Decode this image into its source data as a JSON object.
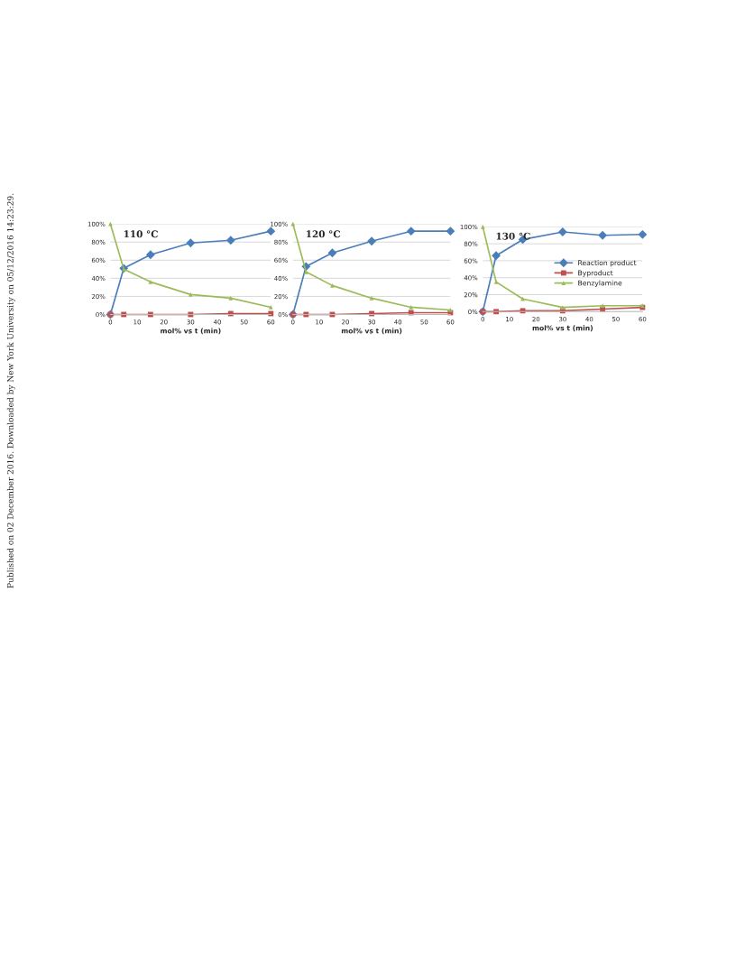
{
  "chart_data": [
    {
      "type": "line",
      "title": "110 °C",
      "xlabel": "mol% vs t (min)",
      "x": [
        0,
        5,
        15,
        30,
        45,
        60
      ],
      "xlim": [
        0,
        60
      ],
      "xticks": [
        0,
        10,
        20,
        30,
        40,
        50,
        60
      ],
      "ylim": [
        0,
        100
      ],
      "yticks": [
        {
          "value": 0,
          "label": "0%"
        },
        {
          "value": 20,
          "label": "20%"
        },
        {
          "value": 40,
          "label": "40%"
        },
        {
          "value": 60,
          "label": "60%"
        },
        {
          "value": 80,
          "label": "80%"
        },
        {
          "value": 100,
          "label": "100%"
        }
      ],
      "grid": "y",
      "legend": false,
      "annotations": [
        "Published on 02 December 2016. Downloaded by New York University on 05/12/2016 14:23:29."
      ],
      "series": [
        {
          "color": "#4a7ebb",
          "marker": "diamond",
          "values": [
            0,
            51,
            66,
            79,
            82,
            92
          ]
        },
        {
          "color": "#c0504d",
          "marker": "square",
          "values": [
            0,
            0,
            0,
            0,
            1,
            1
          ]
        },
        {
          "color": "#9bbb59",
          "marker": "triangle",
          "values": [
            100,
            50,
            36,
            22,
            18,
            8
          ]
        }
      ]
    },
    {
      "type": "line",
      "title": "120 °C",
      "xlabel": "mol% vs t (min)",
      "x": [
        0,
        5,
        15,
        30,
        45,
        60
      ],
      "xlim": [
        0,
        60
      ],
      "xticks": [
        0,
        10,
        20,
        30,
        40,
        50,
        60
      ],
      "ylim": [
        0,
        100
      ],
      "yticks": [
        {
          "value": 0,
          "label": "0%"
        },
        {
          "value": 20,
          "label": "20%"
        },
        {
          "value": 40,
          "label": "40%"
        },
        {
          "value": 60,
          "label": "60%"
        },
        {
          "value": 80,
          "label": "80%"
        },
        {
          "value": 100,
          "label": "100%"
        }
      ],
      "grid": "y",
      "legend": false,
      "series": [
        {
          "color": "#4a7ebb",
          "marker": "diamond",
          "values": [
            0,
            53,
            68,
            81,
            92,
            92
          ]
        },
        {
          "color": "#c0504d",
          "marker": "square",
          "values": [
            0,
            0,
            0,
            1,
            2,
            2
          ]
        },
        {
          "color": "#9bbb59",
          "marker": "triangle",
          "values": [
            100,
            47,
            32,
            18,
            8,
            5
          ]
        }
      ]
    },
    {
      "type": "line",
      "title": "130 °C",
      "xlabel": "mol% vs t (min)",
      "x": [
        0,
        5,
        15,
        30,
        45,
        60
      ],
      "xlim": [
        0,
        60
      ],
      "xticks": [
        0,
        10,
        20,
        30,
        40,
        50,
        60
      ],
      "ylim": [
        0,
        100
      ],
      "yticks": [
        {
          "value": 0,
          "label": "0%"
        },
        {
          "value": 20,
          "label": "20%"
        },
        {
          "value": 40,
          "label": "40%"
        },
        {
          "value": 60,
          "label": "60%"
        },
        {
          "value": 80,
          "label": "80%"
        },
        {
          "value": 100,
          "label": "100%"
        }
      ],
      "grid": "y",
      "legend": "center right",
      "series": [
        {
          "name": "Reaction product",
          "color": "#4a7ebb",
          "marker": "diamond",
          "values": [
            0,
            66,
            85,
            94,
            90,
            91
          ]
        },
        {
          "name": "Byproduct",
          "color": "#c0504d",
          "marker": "square",
          "values": [
            0,
            0,
            1,
            1,
            3,
            5
          ]
        },
        {
          "name": "Benzylamine",
          "color": "#9bbb59",
          "marker": "triangle",
          "values": [
            100,
            35,
            15,
            5,
            7,
            7
          ]
        }
      ]
    }
  ]
}
